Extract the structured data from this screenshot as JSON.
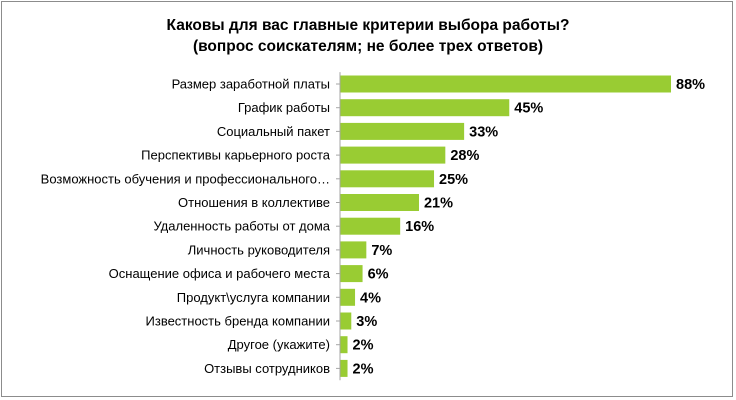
{
  "chart_data": {
    "type": "bar",
    "orientation": "horizontal",
    "title": "Каковы для вас главные критерии выбора работы?",
    "subtitle": "(вопрос соискателям; не более трех ответов)",
    "categories": [
      "Размер заработной платы",
      "График работы",
      "Социальный пакет",
      "Перспективы карьерного роста",
      "Возможность обучения и профессионального…",
      "Отношения в коллективе",
      "Удаленность работы от дома",
      "Личность руководителя",
      "Оснащение офиса и рабочего места",
      "Продукт\\услуга компании",
      "Известность бренда компании",
      "Другое (укажите)",
      "Отзывы сотрудников"
    ],
    "values": [
      88,
      45,
      33,
      28,
      25,
      21,
      16,
      7,
      6,
      4,
      3,
      2,
      2
    ],
    "value_labels": [
      "88%",
      "45%",
      "33%",
      "28%",
      "25%",
      "21%",
      "16%",
      "7%",
      "6%",
      "4%",
      "3%",
      "2%",
      "2%"
    ],
    "xlim": [
      0,
      100
    ],
    "grid": false,
    "legend": "none",
    "bar_color": "#99cc33",
    "axis_color": "#a6a6a6"
  }
}
